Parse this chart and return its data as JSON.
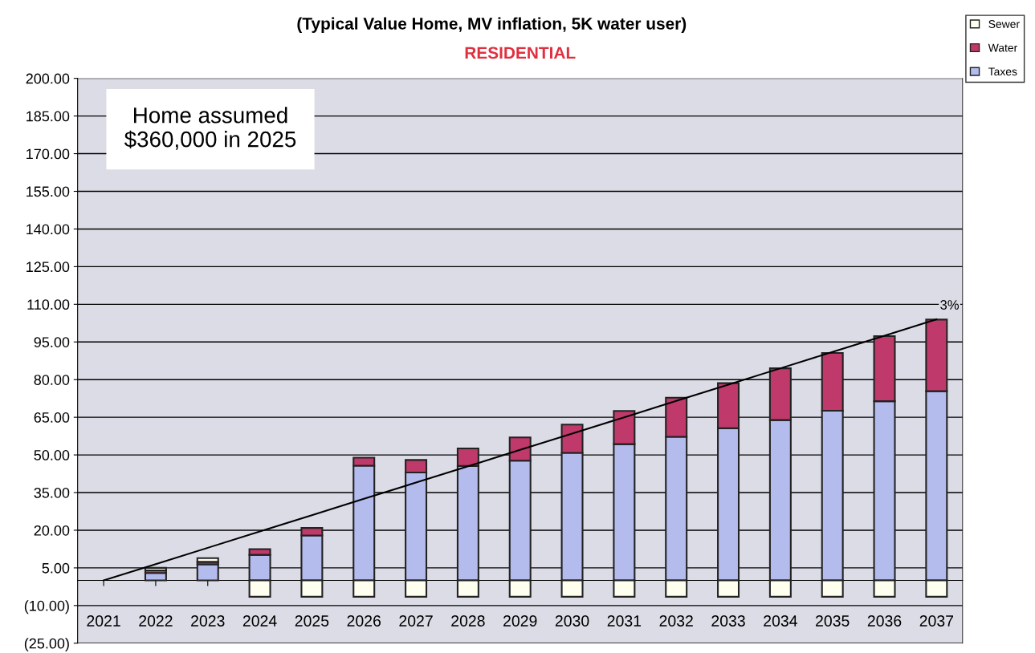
{
  "chart_data": {
    "type": "bar",
    "title": "(Typical Value Home, MV inflation, 5K water user)",
    "subtitle": "RESIDENTIAL",
    "stacked": true,
    "categories": [
      "2021",
      "2022",
      "2023",
      "2024",
      "2025",
      "2026",
      "2027",
      "2028",
      "2029",
      "2030",
      "2031",
      "2032",
      "2033",
      "2034",
      "2035",
      "2036",
      "2037"
    ],
    "series": [
      {
        "name": "Taxes",
        "color": "#b4bcee",
        "values": [
          0,
          3,
          6.4,
          10.2,
          17.9,
          45.7,
          43,
          45.6,
          47.7,
          50.8,
          54.3,
          57.2,
          60.6,
          63.9,
          67.6,
          71.4,
          75.4
        ]
      },
      {
        "name": "Water",
        "color": "#c0396b",
        "values": [
          0,
          1,
          1,
          2.3,
          3,
          3.2,
          5,
          7,
          9.3,
          11.3,
          13.2,
          15.6,
          18,
          20.6,
          23,
          25.9,
          28.5
        ]
      },
      {
        "name": "Sewer",
        "color": "#fffff0",
        "values": [
          0,
          1,
          1.5,
          -6.5,
          -6.5,
          -6.5,
          -6.5,
          -6.5,
          -6.5,
          -6.5,
          -6.5,
          -6.5,
          -6.5,
          -6.5,
          -6.5,
          -6.5,
          -6.5
        ]
      },
      {
        "name": "3%",
        "type": "line",
        "color": "#000000",
        "values": [
          0,
          6.5,
          13,
          19.5,
          26,
          32.5,
          39,
          45.5,
          52,
          58.5,
          65,
          71.5,
          78,
          84.5,
          91,
          97.5,
          104
        ]
      }
    ],
    "ylim": [
      -25,
      200
    ],
    "yticks": [
      {
        "value": -25,
        "label": "(25.00)"
      },
      {
        "value": -10,
        "label": "(10.00)"
      },
      {
        "value": 5,
        "label": "5.00"
      },
      {
        "value": 20,
        "label": "20.00"
      },
      {
        "value": 35,
        "label": "35.00"
      },
      {
        "value": 50,
        "label": "50.00"
      },
      {
        "value": 65,
        "label": "65.00"
      },
      {
        "value": 80,
        "label": "80.00"
      },
      {
        "value": 95,
        "label": "95.00"
      },
      {
        "value": 110,
        "label": "110.00"
      },
      {
        "value": 125,
        "label": "125.00"
      },
      {
        "value": 140,
        "label": "140.00"
      },
      {
        "value": 155,
        "label": "155.00"
      },
      {
        "value": 170,
        "label": "170.00"
      },
      {
        "value": 185,
        "label": "185.00"
      },
      {
        "value": 200,
        "label": "200.00"
      }
    ],
    "grid": "y",
    "legend": "right",
    "marker": "none",
    "line_style": "solid",
    "annotations": [
      "Home assumed\n$360,000 in 2025"
    ]
  }
}
